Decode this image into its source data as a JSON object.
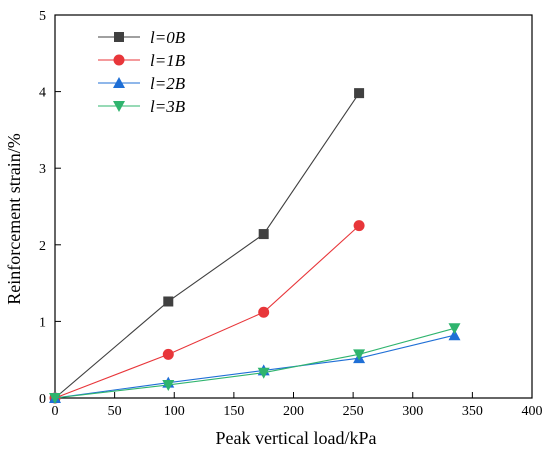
{
  "chart_data": {
    "type": "line",
    "title": "",
    "xlabel": "Peak vertical load/kPa",
    "ylabel": "Reinforcement strain/%",
    "xlim": [
      0,
      400
    ],
    "ylim": [
      0,
      5
    ],
    "xticks": [
      0,
      50,
      100,
      150,
      200,
      250,
      300,
      350,
      400
    ],
    "yticks": [
      0,
      1,
      2,
      3,
      4,
      5
    ],
    "grid": false,
    "legend_position": "top-left",
    "series": [
      {
        "name": "l=0B",
        "color": "#404040",
        "marker": "square",
        "points": [
          [
            0,
            0
          ],
          [
            95,
            1.26
          ],
          [
            175,
            2.14
          ],
          [
            255,
            3.98
          ]
        ]
      },
      {
        "name": "l=1B",
        "color": "#e8363a",
        "marker": "circle",
        "points": [
          [
            0,
            0
          ],
          [
            95,
            0.57
          ],
          [
            175,
            1.12
          ],
          [
            255,
            2.25
          ]
        ]
      },
      {
        "name": "l=2B",
        "color": "#1f6fd6",
        "marker": "triangle-up",
        "points": [
          [
            0,
            0
          ],
          [
            95,
            0.2
          ],
          [
            175,
            0.36
          ],
          [
            255,
            0.52
          ],
          [
            335,
            0.82
          ]
        ]
      },
      {
        "name": "l=3B",
        "color": "#2fb46e",
        "marker": "triangle-down",
        "points": [
          [
            0,
            0
          ],
          [
            95,
            0.17
          ],
          [
            175,
            0.33
          ],
          [
            255,
            0.57
          ],
          [
            335,
            0.91
          ]
        ]
      }
    ]
  }
}
